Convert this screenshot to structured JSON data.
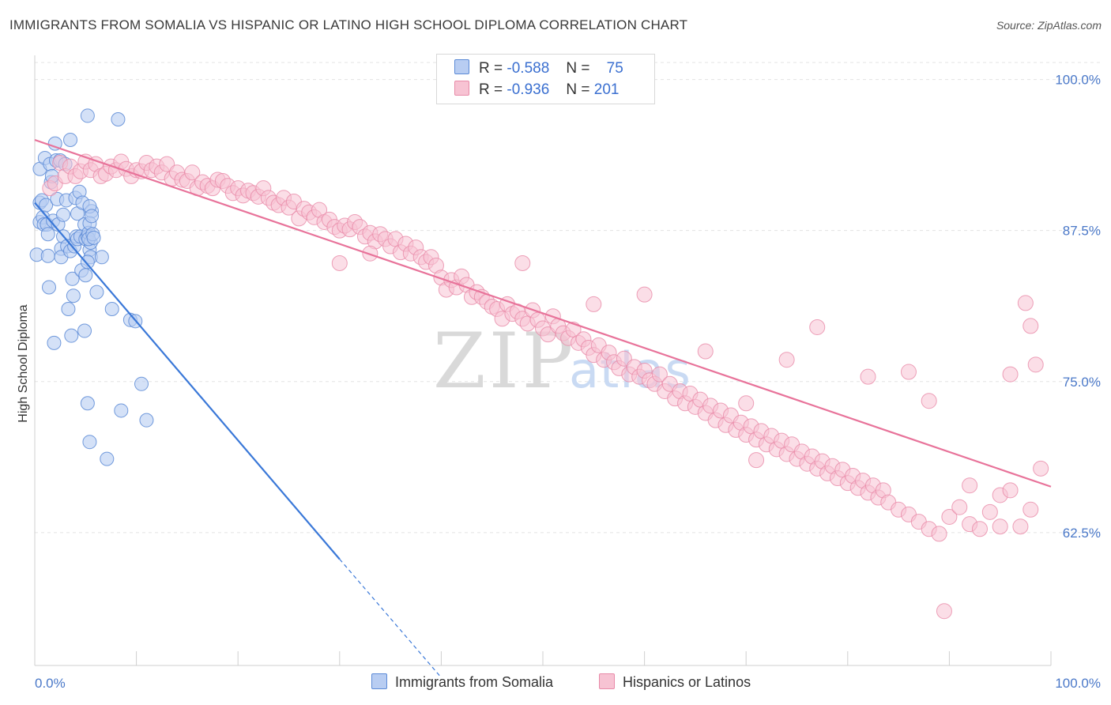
{
  "title": "IMMIGRANTS FROM SOMALIA VS HISPANIC OR LATINO HIGH SCHOOL DIPLOMA CORRELATION CHART",
  "source": "Source: ZipAtlas.com",
  "legend": {
    "rows": [
      {
        "r_label": "R =",
        "r_value": "-0.588",
        "n_label": "N =",
        "n_value": "75"
      },
      {
        "r_label": "R =",
        "r_value": "-0.936",
        "n_label": "N =",
        "n_value": "201"
      }
    ]
  },
  "watermark": {
    "zip": "ZIP",
    "atlas": "atlas"
  },
  "colors": {
    "somalia_fill": "#b8cdf2",
    "somalia_stroke": "#5b8ad6",
    "somalia_line": "#3a78d8",
    "hispanic_fill": "#f7c3d3",
    "hispanic_stroke": "#e88aa8",
    "hispanic_line": "#e8739a",
    "tick": "#4a78c8",
    "grid": "#e3e3e3"
  },
  "chart_data": {
    "type": "scatter",
    "title": "IMMIGRANTS FROM SOMALIA VS HISPANIC OR LATINO HIGH SCHOOL DIPLOMA CORRELATION CHART",
    "xlabel": "",
    "ylabel": "High School Diploma",
    "xlim": [
      0,
      100
    ],
    "ylim": [
      51.5,
      102
    ],
    "x_tick_labels": [
      "0.0%",
      "100.0%"
    ],
    "y_ticks": [
      62.5,
      75.0,
      87.5,
      100.0
    ],
    "y_tick_labels": [
      "62.5%",
      "75.0%",
      "87.5%",
      "100.0%"
    ],
    "grid": true,
    "legend_position": "top-center",
    "series": [
      {
        "name": "Immigrants from Somalia",
        "r": -0.588,
        "n": 75,
        "trend": {
          "x0": 0,
          "y0": 89.8,
          "x1": 30,
          "y1": 60.3,
          "dash_x1": 40,
          "dash_y1": 50.5
        },
        "points": [
          [
            0.2,
            85.5
          ],
          [
            0.5,
            92.6
          ],
          [
            0.5,
            89.8
          ],
          [
            0.5,
            88.2
          ],
          [
            0.7,
            90.0
          ],
          [
            0.8,
            88.6
          ],
          [
            0.9,
            88.0
          ],
          [
            1.0,
            93.5
          ],
          [
            1.1,
            89.6
          ],
          [
            1.2,
            88.0
          ],
          [
            1.3,
            87.2
          ],
          [
            1.3,
            85.4
          ],
          [
            1.4,
            82.8
          ],
          [
            1.5,
            93.0
          ],
          [
            1.6,
            91.5
          ],
          [
            1.7,
            92.0
          ],
          [
            1.8,
            88.3
          ],
          [
            1.9,
            78.2
          ],
          [
            2.0,
            94.7
          ],
          [
            2.1,
            93.3
          ],
          [
            2.2,
            90.1
          ],
          [
            2.3,
            88.0
          ],
          [
            2.5,
            93.3
          ],
          [
            2.6,
            86.0
          ],
          [
            2.6,
            85.3
          ],
          [
            2.8,
            88.8
          ],
          [
            2.8,
            87.0
          ],
          [
            3.0,
            93.0
          ],
          [
            3.1,
            90.0
          ],
          [
            3.2,
            86.2
          ],
          [
            3.3,
            81.0
          ],
          [
            3.5,
            95.0
          ],
          [
            3.5,
            85.8
          ],
          [
            3.6,
            78.8
          ],
          [
            3.7,
            83.5
          ],
          [
            3.8,
            82.1
          ],
          [
            3.9,
            86.2
          ],
          [
            4.0,
            90.2
          ],
          [
            4.1,
            87.0
          ],
          [
            4.2,
            88.9
          ],
          [
            4.2,
            86.8
          ],
          [
            4.4,
            90.7
          ],
          [
            4.5,
            87.0
          ],
          [
            4.6,
            84.2
          ],
          [
            4.7,
            89.8
          ],
          [
            4.9,
            88.0
          ],
          [
            4.9,
            79.2
          ],
          [
            5.0,
            86.8
          ],
          [
            5.2,
            97.0
          ],
          [
            5.2,
            73.2
          ],
          [
            5.4,
            70.0
          ],
          [
            5.6,
            89.1
          ],
          [
            5.4,
            85.9
          ],
          [
            5.2,
            87.0
          ],
          [
            5.3,
            87.3
          ],
          [
            5.4,
            88.1
          ],
          [
            5.5,
            86.5
          ],
          [
            5.3,
            86.8
          ],
          [
            5.5,
            85.3
          ],
          [
            5.4,
            89.5
          ],
          [
            5.6,
            88.7
          ],
          [
            5.7,
            87.2
          ],
          [
            5.8,
            86.9
          ],
          [
            5.2,
            84.9
          ],
          [
            5.0,
            83.8
          ],
          [
            6.1,
            82.4
          ],
          [
            6.6,
            85.3
          ],
          [
            7.1,
            68.6
          ],
          [
            7.6,
            81.0
          ],
          [
            8.2,
            96.7
          ],
          [
            8.5,
            72.6
          ],
          [
            9.4,
            80.1
          ],
          [
            9.9,
            80.0
          ],
          [
            10.5,
            74.8
          ],
          [
            11.0,
            71.8
          ]
        ]
      },
      {
        "name": "Hispanics or Latinos",
        "r": -0.936,
        "n": 201,
        "trend": {
          "x0": 0,
          "y0": 95.0,
          "x1": 100,
          "y1": 66.3
        },
        "points": [
          [
            1.5,
            91.0
          ],
          [
            2.0,
            91.4
          ],
          [
            2.5,
            93.1
          ],
          [
            3.0,
            92.0
          ],
          [
            3.5,
            92.8
          ],
          [
            4.0,
            92.0
          ],
          [
            4.5,
            92.4
          ],
          [
            5.0,
            93.2
          ],
          [
            5.5,
            92.5
          ],
          [
            6.0,
            93.0
          ],
          [
            6.5,
            92.0
          ],
          [
            7.0,
            92.2
          ],
          [
            7.5,
            92.8
          ],
          [
            8.0,
            92.5
          ],
          [
            8.5,
            93.2
          ],
          [
            9.0,
            92.6
          ],
          [
            9.5,
            92.0
          ],
          [
            10.0,
            92.5
          ],
          [
            10.5,
            92.4
          ],
          [
            11.0,
            93.1
          ],
          [
            11.5,
            92.5
          ],
          [
            12.0,
            92.8
          ],
          [
            12.5,
            92.3
          ],
          [
            13.0,
            93.0
          ],
          [
            13.5,
            91.8
          ],
          [
            14.0,
            92.3
          ],
          [
            14.5,
            91.7
          ],
          [
            15.0,
            91.6
          ],
          [
            15.5,
            92.3
          ],
          [
            16.0,
            91.0
          ],
          [
            16.5,
            91.5
          ],
          [
            17.0,
            91.2
          ],
          [
            17.5,
            91.0
          ],
          [
            18.0,
            91.7
          ],
          [
            18.5,
            91.6
          ],
          [
            19.0,
            91.2
          ],
          [
            19.5,
            90.6
          ],
          [
            20.0,
            91.0
          ],
          [
            20.5,
            90.4
          ],
          [
            21.0,
            90.8
          ],
          [
            21.5,
            90.6
          ],
          [
            22.0,
            90.3
          ],
          [
            22.5,
            91.0
          ],
          [
            23.0,
            90.2
          ],
          [
            23.5,
            89.8
          ],
          [
            24.0,
            89.6
          ],
          [
            24.5,
            90.2
          ],
          [
            25.0,
            89.4
          ],
          [
            25.5,
            89.9
          ],
          [
            26.0,
            88.5
          ],
          [
            26.5,
            89.3
          ],
          [
            27.0,
            89.0
          ],
          [
            27.5,
            88.6
          ],
          [
            28.0,
            89.2
          ],
          [
            28.5,
            88.2
          ],
          [
            29.0,
            88.4
          ],
          [
            29.5,
            87.8
          ],
          [
            30.0,
            87.5
          ],
          [
            30.5,
            87.9
          ],
          [
            31.0,
            87.6
          ],
          [
            31.5,
            88.2
          ],
          [
            32.0,
            87.8
          ],
          [
            32.5,
            87.0
          ],
          [
            33.0,
            87.3
          ],
          [
            33.5,
            86.6
          ],
          [
            34.0,
            87.2
          ],
          [
            34.5,
            86.8
          ],
          [
            35.0,
            86.2
          ],
          [
            35.5,
            86.8
          ],
          [
            36.0,
            85.7
          ],
          [
            36.5,
            86.4
          ],
          [
            37.0,
            85.6
          ],
          [
            37.5,
            86.1
          ],
          [
            38.0,
            85.3
          ],
          [
            38.5,
            84.9
          ],
          [
            39.0,
            85.3
          ],
          [
            39.5,
            84.6
          ],
          [
            40.0,
            83.6
          ],
          [
            40.5,
            82.6
          ],
          [
            41.0,
            83.4
          ],
          [
            41.5,
            82.8
          ],
          [
            42.0,
            83.7
          ],
          [
            42.5,
            83.0
          ],
          [
            43.0,
            82.0
          ],
          [
            43.5,
            82.4
          ],
          [
            44.0,
            82.0
          ],
          [
            44.5,
            81.6
          ],
          [
            45.0,
            81.2
          ],
          [
            45.5,
            81.0
          ],
          [
            46.0,
            80.2
          ],
          [
            46.5,
            81.4
          ],
          [
            47.0,
            80.6
          ],
          [
            47.5,
            80.8
          ],
          [
            48.0,
            80.2
          ],
          [
            48.5,
            79.8
          ],
          [
            49.0,
            80.9
          ],
          [
            49.5,
            80.1
          ],
          [
            50.0,
            79.4
          ],
          [
            50.5,
            78.9
          ],
          [
            51.0,
            80.4
          ],
          [
            51.5,
            79.6
          ],
          [
            52.0,
            79.0
          ],
          [
            52.5,
            78.6
          ],
          [
            53.0,
            79.3
          ],
          [
            53.5,
            78.2
          ],
          [
            54.0,
            78.5
          ],
          [
            54.5,
            77.8
          ],
          [
            55.0,
            77.2
          ],
          [
            55.5,
            78.0
          ],
          [
            56.0,
            76.8
          ],
          [
            56.5,
            77.4
          ],
          [
            57.0,
            76.6
          ],
          [
            57.5,
            76.1
          ],
          [
            58.0,
            76.9
          ],
          [
            58.5,
            75.6
          ],
          [
            59.0,
            76.2
          ],
          [
            59.5,
            75.4
          ],
          [
            60.0,
            75.9
          ],
          [
            60.5,
            75.1
          ],
          [
            61.0,
            74.8
          ],
          [
            61.5,
            75.6
          ],
          [
            62.0,
            74.2
          ],
          [
            62.5,
            74.8
          ],
          [
            63.0,
            73.6
          ],
          [
            63.5,
            74.2
          ],
          [
            64.0,
            73.2
          ],
          [
            64.5,
            74.0
          ],
          [
            65.0,
            72.9
          ],
          [
            65.5,
            73.5
          ],
          [
            66.0,
            72.4
          ],
          [
            66.5,
            73.0
          ],
          [
            67.0,
            71.8
          ],
          [
            67.5,
            72.6
          ],
          [
            68.0,
            71.4
          ],
          [
            68.5,
            72.2
          ],
          [
            69.0,
            71.0
          ],
          [
            69.5,
            71.6
          ],
          [
            70.0,
            70.6
          ],
          [
            70.5,
            71.3
          ],
          [
            71.0,
            70.2
          ],
          [
            71.5,
            70.9
          ],
          [
            72.0,
            69.8
          ],
          [
            72.5,
            70.5
          ],
          [
            73.0,
            69.4
          ],
          [
            73.5,
            70.1
          ],
          [
            74.0,
            69.0
          ],
          [
            74.5,
            69.8
          ],
          [
            75.0,
            68.6
          ],
          [
            75.5,
            69.2
          ],
          [
            76.0,
            68.2
          ],
          [
            76.5,
            68.8
          ],
          [
            77.0,
            67.8
          ],
          [
            77.5,
            68.4
          ],
          [
            78.0,
            67.4
          ],
          [
            78.5,
            68.0
          ],
          [
            79.0,
            67.0
          ],
          [
            79.5,
            67.7
          ],
          [
            80.0,
            66.6
          ],
          [
            80.5,
            67.2
          ],
          [
            81.0,
            66.2
          ],
          [
            81.5,
            66.8
          ],
          [
            82.0,
            65.8
          ],
          [
            82.5,
            66.4
          ],
          [
            83.0,
            65.4
          ],
          [
            83.5,
            66.0
          ],
          [
            84.0,
            65.0
          ],
          [
            85.0,
            64.4
          ],
          [
            86.0,
            64.0
          ],
          [
            87.0,
            63.4
          ],
          [
            88.0,
            62.8
          ],
          [
            89.0,
            62.4
          ],
          [
            90.0,
            63.8
          ],
          [
            91.0,
            64.6
          ],
          [
            92.0,
            63.2
          ],
          [
            93.0,
            62.8
          ],
          [
            94.0,
            64.2
          ],
          [
            95.0,
            65.6
          ],
          [
            96.0,
            66.0
          ],
          [
            97.0,
            63.0
          ],
          [
            98.0,
            64.4
          ],
          [
            30.0,
            84.8
          ],
          [
            33.0,
            85.6
          ],
          [
            48.0,
            84.8
          ],
          [
            55.0,
            81.4
          ],
          [
            60.0,
            82.2
          ],
          [
            66.0,
            77.5
          ],
          [
            70.0,
            73.2
          ],
          [
            74.0,
            76.8
          ],
          [
            77.0,
            79.5
          ],
          [
            82.0,
            75.4
          ],
          [
            86.0,
            75.8
          ],
          [
            88.0,
            73.4
          ],
          [
            92.0,
            66.4
          ],
          [
            96.0,
            75.6
          ],
          [
            97.5,
            81.5
          ],
          [
            98.0,
            79.6
          ],
          [
            98.5,
            76.4
          ],
          [
            99.0,
            67.8
          ],
          [
            95.0,
            63.0
          ],
          [
            89.5,
            56.0
          ],
          [
            71.0,
            68.5
          ]
        ]
      }
    ]
  },
  "bottom_legend": [
    {
      "label": "Immigrants from Somalia"
    },
    {
      "label": "Hispanics or Latinos"
    }
  ]
}
